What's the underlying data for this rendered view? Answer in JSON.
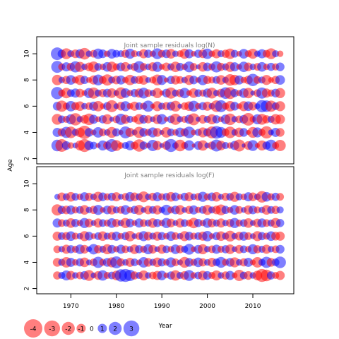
{
  "chart_data": [
    {
      "type": "scatter",
      "title": "Joint sample residuals log(N)",
      "ylabel": "Age",
      "xlim": [
        1962.5,
        2019
      ],
      "ylim": [
        1.6,
        11.3
      ],
      "y_ticks": [
        "2",
        "4",
        "6",
        "8",
        "10"
      ],
      "ages": [
        3,
        4,
        5,
        6,
        7,
        8,
        9,
        10
      ],
      "years": [
        1967,
        2016
      ],
      "colors": {
        "positive": "#ff0000",
        "negative": "#0000ff"
      },
      "residuals_note": "bubble area ~ |residual|; red = positive, blue = negative",
      "residuals": [
        [
          -1.6,
          1.9,
          -0.9,
          0.5,
          -0.4,
          1.2,
          2.0,
          -1.0,
          -0.7,
          0.3,
          -1.2,
          0.8,
          -1.9,
          1.4,
          0.5,
          -0.6,
          -1.1,
          0.7,
          1.8,
          -0.8,
          0.4,
          -1.5,
          1.0,
          -0.3,
          0.9,
          -2.0,
          -0.5,
          1.6,
          0.6,
          -1.3,
          0.2,
          -0.9,
          1.3,
          -0.4,
          0.8,
          -1.7,
          1.1,
          -0.6,
          0.5,
          -1.0,
          1.7,
          -0.2,
          0.9,
          -1.4,
          0.3,
          1.2,
          -0.8,
          -1.6,
          0.6,
          1.5
        ],
        [
          -1.0,
          0.8,
          -1.5,
          1.6,
          -0.6,
          1.1,
          2.1,
          -0.9,
          0.4,
          -1.3,
          0.7,
          -0.5,
          1.4,
          -0.8,
          0.3,
          -1.7,
          1.0,
          -0.4,
          1.5,
          -0.9,
          0.6,
          -1.2,
          0.9,
          -0.3,
          1.3,
          -0.7,
          0.5,
          -1.1,
          0.8,
          -1.6,
          0.4,
          -0.6,
          1.2,
          -0.8,
          1.7,
          -1.9,
          -1.4,
          0.7,
          1.6,
          -0.5,
          1.1,
          -0.9,
          0.3,
          1.4,
          -1.2,
          0.6,
          1.8,
          -0.4,
          -1.0,
          0.9
        ],
        [
          1.4,
          -0.7,
          0.6,
          -1.2,
          1.8,
          -0.5,
          0.9,
          1.6,
          -1.0,
          0.4,
          -0.8,
          1.2,
          -0.3,
          0.7,
          -1.5,
          1.0,
          -0.6,
          0.5,
          1.3,
          -0.9,
          0.8,
          -0.4,
          1.1,
          -1.3,
          0.3,
          -0.7,
          1.5,
          -0.5,
          0.6,
          -1.0,
          1.7,
          -0.3,
          0.9,
          -0.6,
          1.2,
          -0.8,
          0.4,
          -1.1,
          1.6,
          -0.5,
          0.7,
          -0.9,
          1.9,
          0.5,
          -1.2,
          1.4,
          0.8,
          -0.6,
          1.3,
          1.1
        ],
        [
          -0.9,
          1.5,
          0.6,
          -1.3,
          0.8,
          1.1,
          -0.5,
          0.7,
          -1.0,
          1.3,
          0.4,
          -0.8,
          1.7,
          -0.4,
          0.9,
          -1.2,
          0.5,
          1.0,
          -0.7,
          0.6,
          -1.5,
          0.3,
          1.2,
          -0.6,
          0.8,
          -0.9,
          1.4,
          -0.3,
          0.7,
          1.1,
          -1.4,
          0.5,
          -0.8,
          1.0,
          -0.5,
          1.6,
          -1.7,
          0.6,
          1.3,
          -0.9,
          0.4,
          1.2,
          -1.1,
          0.9,
          -0.4,
          -1.8,
          -1.6,
          1.5,
          -0.7,
          1.2
        ],
        [
          -1.8,
          0.6,
          1.3,
          -0.7,
          -1.0,
          0.9,
          0.4,
          -1.2,
          1.5,
          -0.6,
          0.8,
          -0.9,
          1.1,
          -0.4,
          1.6,
          -1.1,
          0.5,
          -0.8,
          1.0,
          -1.4,
          0.7,
          -0.5,
          1.2,
          0.3,
          -0.9,
          1.5,
          -0.6,
          0.8,
          -1.3,
          0.4,
          1.1,
          -0.7,
          0.6,
          -1.0,
          1.4,
          -0.5,
          0.9,
          -1.6,
          1.7,
          -0.8,
          0.5,
          -1.1,
          1.3,
          -0.3,
          0.7,
          -1.5,
          1.0,
          0.6,
          -0.9,
          1.2
        ],
        [
          1.3,
          -0.5,
          0.8,
          -1.1,
          0.6,
          1.2,
          -0.8,
          0.4,
          1.0,
          -1.4,
          0.7,
          1.5,
          -0.6,
          0.9,
          -1.0,
          0.5,
          1.3,
          -0.7,
          0.8,
          1.1,
          -0.4,
          0.6,
          1.4,
          -1.2,
          0.3,
          -0.8,
          1.0,
          0.7,
          -0.5,
          1.2,
          -0.9,
          0.4,
          -1.3,
          0.8,
          0.6,
          -0.7,
          1.1,
          -0.5,
          1.6,
          1.3,
          -1.0,
          0.5,
          0.9,
          -1.8,
          0.7,
          -0.6,
          1.2,
          0.4,
          0.8,
          -1.1
        ],
        [
          -1.7,
          0.6,
          -1.0,
          0.8,
          -1.5,
          1.2,
          -0.5,
          0.9,
          1.4,
          -0.7,
          0.5,
          -1.1,
          1.3,
          0.6,
          -0.9,
          1.1,
          -0.4,
          0.8,
          -1.6,
          0.7,
          -0.5,
          1.0,
          -1.2,
          0.4,
          0.9,
          -0.6,
          1.3,
          -0.8,
          0.5,
          -1.4,
          0.7,
          -0.3,
          1.1,
          -0.9,
          0.6,
          -1.5,
          0.8,
          -0.6,
          1.2,
          -1.0,
          0.4,
          -1.3,
          0.9,
          -0.5,
          0.7,
          -1.1,
          0.5,
          -0.8,
          0.6,
          -0.9
        ],
        [
          -1.9,
          -0.8,
          1.4,
          -0.6,
          0.9,
          -1.0,
          1.6,
          -0.5,
          0.7,
          -1.3,
          -0.9,
          0.5,
          -1.1,
          -0.7,
          -0.6,
          0.8,
          -1.2,
          0.6,
          -0.4,
          1.0,
          -0.8,
          0.5,
          -1.4,
          0.7,
          -0.9,
          1.1,
          -0.5,
          0.6,
          1.2,
          -1.0,
          0.4,
          -0.8,
          0.9,
          -1.3,
          0.5,
          1.0,
          -0.6,
          0.8,
          1.3,
          -0.7,
          0.4,
          -1.1,
          0.6,
          1.2,
          -0.5,
          -1.0,
          0.7,
          1.4,
          -0.6,
          0.5
        ]
      ]
    },
    {
      "type": "scatter",
      "title": "Joint sample residuals log(F)",
      "ylabel": "Age",
      "xlabel": "Year",
      "xlim": [
        1962.5,
        2019
      ],
      "ylim": [
        1.6,
        11.3
      ],
      "x_ticks": [
        "1970",
        "1980",
        "1990",
        "2000",
        "2010"
      ],
      "x_tick_values": [
        1970,
        1980,
        1990,
        2000,
        2010
      ],
      "y_ticks": [
        "2",
        "4",
        "6",
        "8",
        "10"
      ],
      "ages": [
        3,
        4,
        5,
        6,
        7,
        8,
        9
      ],
      "years": [
        1967,
        2016
      ],
      "colors": {
        "positive": "#ff0000",
        "negative": "#0000ff"
      },
      "residuals": [
        [
          0.8,
          -0.6,
          -1.2,
          1.0,
          -0.5,
          0.7,
          -0.9,
          1.4,
          -0.4,
          0.9,
          -1.3,
          0.6,
          -0.7,
          1.1,
          -1.8,
          -2.0,
          -1.5,
          0.8,
          -0.6,
          1.2,
          -0.5,
          0.7,
          1.0,
          -1.1,
          0.4,
          -0.8,
          1.3,
          -0.6,
          0.9,
          -1.4,
          0.5,
          -0.7,
          1.1,
          -0.9,
          0.6,
          1.2,
          -0.5,
          0.8,
          -1.0,
          0.4,
          1.5,
          -0.7,
          0.9,
          -0.5,
          1.1,
          2.0,
          1.6,
          -0.8,
          0.6,
          1.0
        ],
        [
          0.9,
          -0.6,
          1.3,
          -1.0,
          0.5,
          -0.8,
          1.1,
          -0.4,
          0.7,
          -1.5,
          0.6,
          -0.9,
          1.2,
          -1.7,
          0.8,
          -0.5,
          1.0,
          -0.7,
          0.4,
          -1.3,
          0.9,
          -0.6,
          1.1,
          -0.8,
          0.5,
          -1.2,
          0.7,
          -0.4,
          1.4,
          -0.9,
          0.6,
          -1.1,
          0.8,
          -0.5,
          1.0,
          -0.7,
          -1.4,
          0.6,
          -0.9,
          1.2,
          -0.5,
          0.8,
          -1.0,
          0.4,
          1.3,
          -0.6,
          -1.5,
          0.9,
          -0.7,
          -1.6
        ],
        [
          0.7,
          -0.5,
          1.0,
          -0.8,
          0.6,
          -1.1,
          0.9,
          -0.4,
          -1.3,
          0.8,
          -0.6,
          1.2,
          -0.9,
          0.5,
          -1.0,
          0.7,
          -0.5,
          1.1,
          -0.8,
          0.6,
          -1.2,
          0.9,
          -0.4,
          1.0,
          -0.7,
          0.5,
          -1.1,
          0.8,
          -0.6,
          -1.4,
          0.4,
          -0.9,
          1.2,
          -0.5,
          0.7,
          -1.0,
          0.6,
          -0.8,
          1.1,
          -0.4,
          0.9,
          -0.7,
          0.5,
          -1.2,
          0.8,
          -0.6,
          1.0,
          -0.5,
          0.7,
          -0.9
        ],
        [
          1.0,
          -0.7,
          0.8,
          -1.1,
          0.6,
          -0.5,
          1.2,
          -0.9,
          0.4,
          -0.7,
          1.1,
          -0.6,
          0.8,
          -1.0,
          0.5,
          -0.8,
          1.3,
          -0.4,
          0.7,
          -1.2,
          0.9,
          -0.6,
          1.0,
          -0.8,
          0.5,
          -1.1,
          0.7,
          -0.5,
          1.2,
          -0.9,
          0.6,
          -0.7,
          1.0,
          -1.3,
          0.4,
          -0.8,
          1.1,
          -0.6,
          1.4,
          -0.5,
          0.9,
          -1.0,
          0.7,
          -0.4,
          1.2,
          -0.8,
          0.6,
          -1.1,
          0.9,
          1.0
        ],
        [
          -1.0,
          0.7,
          -0.6,
          1.1,
          -0.8,
          0.5,
          -1.2,
          0.9,
          -0.4,
          1.0,
          -0.7,
          0.6,
          -1.1,
          0.8,
          -0.5,
          1.2,
          -0.9,
          0.4,
          -1.0,
          0.7,
          -0.6,
          1.1,
          -0.8,
          0.5,
          -1.2,
          0.9,
          -0.4,
          1.0,
          -0.7,
          0.6,
          1.3,
          -0.8,
          0.5,
          -1.1,
          0.9,
          -0.6,
          1.0,
          -0.5,
          0.8,
          -1.2,
          0.6,
          -0.7,
          1.1,
          -0.4,
          0.9,
          -1.0,
          0.7,
          -0.6,
          1.2,
          -0.8
        ],
        [
          1.5,
          -0.8,
          0.9,
          -1.0,
          0.6,
          -0.7,
          1.1,
          -0.5,
          0.8,
          -1.2,
          0.4,
          -0.9,
          1.0,
          -0.6,
          0.7,
          -1.1,
          0.5,
          -0.8,
          1.2,
          -0.4,
          0.9,
          -0.7,
          1.0,
          -0.5,
          -1.3,
          0.6,
          -0.9,
          1.1,
          -0.4,
          0.8,
          -1.0,
          0.5,
          -0.7,
          1.2,
          -0.6,
          0.9,
          1.4,
          -0.8,
          0.5,
          -1.1,
          0.7,
          -0.4,
          1.0,
          -0.9,
          0.6,
          -0.5,
          1.1,
          -0.7,
          0.8,
          -0.6
        ],
        [
          -0.4,
          0.9,
          -0.6,
          1.1,
          -0.7,
          0.5,
          -1.0,
          0.8,
          -0.5,
          1.2,
          -0.9,
          0.6,
          -0.8,
          1.0,
          -0.4,
          0.7,
          -1.1,
          0.9,
          -0.6,
          1.4,
          -0.5,
          0.8,
          -1.0,
          0.6,
          -0.7,
          1.1,
          -0.9,
          0.4,
          -0.8,
          1.0,
          -0.5,
          0.7,
          -1.2,
          0.6,
          -0.9,
          1.1,
          -0.4,
          0.8,
          -0.7,
          1.2,
          -0.6,
          0.5,
          -1.0,
          0.9,
          -0.5,
          1.6,
          -1.1,
          0.6,
          -0.8,
          0.7
        ]
      ]
    }
  ],
  "legend": {
    "values": [
      -4,
      -3,
      -2,
      -1,
      0,
      1,
      2,
      3
    ],
    "labels": [
      "-4",
      "-3",
      "-2",
      "-1",
      "0",
      "1",
      "2",
      "3"
    ]
  }
}
